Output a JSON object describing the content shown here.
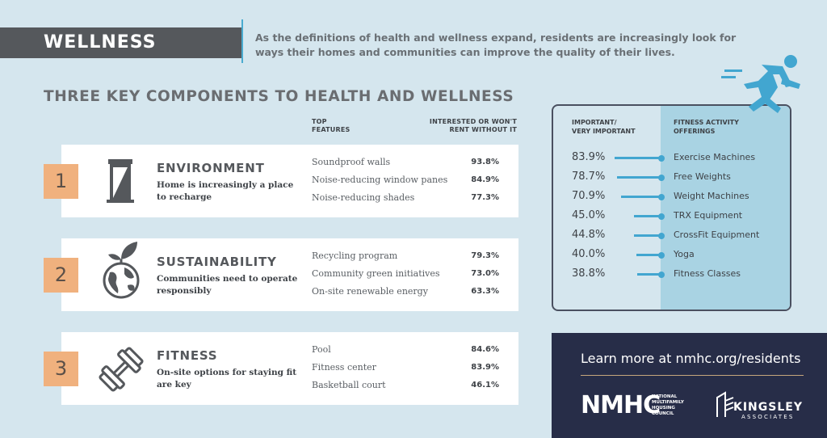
{
  "header": {
    "tag": "WELLNESS",
    "intro": "As the definitions of health and wellness expand, residents are increasingly look for ways their homes and communities can improve the quality of their lives."
  },
  "section_title": "THREE KEY COMPONENTS TO HEALTH AND WELLNESS",
  "columns": {
    "features_line1": "TOP",
    "features_line2": "FEATURES",
    "interest_line1": "INTERESTED OR WON'T",
    "interest_line2": "RENT WITHOUT IT"
  },
  "components": [
    {
      "number": "1",
      "icon": "door-icon",
      "title": "ENVIRONMENT",
      "desc": "Home is increasingly a place to recharge",
      "features": [
        {
          "name": "Soundproof walls",
          "pct": "93.8%"
        },
        {
          "name": "Noise-reducing window panes",
          "pct": "84.9%"
        },
        {
          "name": "Noise-reducing shades",
          "pct": "77.3%"
        }
      ]
    },
    {
      "number": "2",
      "icon": "globe-leaf-icon",
      "title": "SUSTAINABILITY",
      "desc": "Communities need to operate responsibly",
      "features": [
        {
          "name": "Recycling program",
          "pct": "79.3%"
        },
        {
          "name": "Community green initiatives",
          "pct": "73.0%"
        },
        {
          "name": "On-site renewable energy",
          "pct": "63.3%"
        }
      ]
    },
    {
      "number": "3",
      "icon": "dumbbell-icon",
      "title": "FITNESS",
      "desc": "On-site options for staying fit are key",
      "features": [
        {
          "name": "Pool",
          "pct": "84.6%"
        },
        {
          "name": "Fitness center",
          "pct": "83.9%"
        },
        {
          "name": "Basketball court",
          "pct": "46.1%"
        }
      ]
    }
  ],
  "fitness_panel": {
    "left_hd_1": "IMPORTANT/",
    "left_hd_2": "VERY IMPORTANT",
    "right_hd_1": "FITNESS ACTIVITY",
    "right_hd_2": "OFFERINGS",
    "rows": [
      {
        "pct": "83.9%",
        "value": 83.9,
        "label": "Exercise Machines"
      },
      {
        "pct": "78.7%",
        "value": 78.7,
        "label": "Free Weights"
      },
      {
        "pct": "70.9%",
        "value": 70.9,
        "label": "Weight Machines"
      },
      {
        "pct": "45.0%",
        "value": 45.0,
        "label": "TRX Equipment"
      },
      {
        "pct": "44.8%",
        "value": 44.8,
        "label": "CrossFit Equipment"
      },
      {
        "pct": "40.0%",
        "value": 40.0,
        "label": "Yoga"
      },
      {
        "pct": "38.8%",
        "value": 38.8,
        "label": "Fitness Classes"
      }
    ],
    "accent_color": "#42a6d0"
  },
  "footer": {
    "learn_more": "Learn more at nmhc.org/residents",
    "nmhc": "NMHC",
    "nmhc_sub_1": "NATIONAL",
    "nmhc_sub_2": "MULTIFAMILY",
    "nmhc_sub_3": "HOUSING",
    "nmhc_sub_4": "COUNCIL",
    "kingsley_1": "KINGSLEY",
    "kingsley_2": "ASSOCIATES"
  }
}
